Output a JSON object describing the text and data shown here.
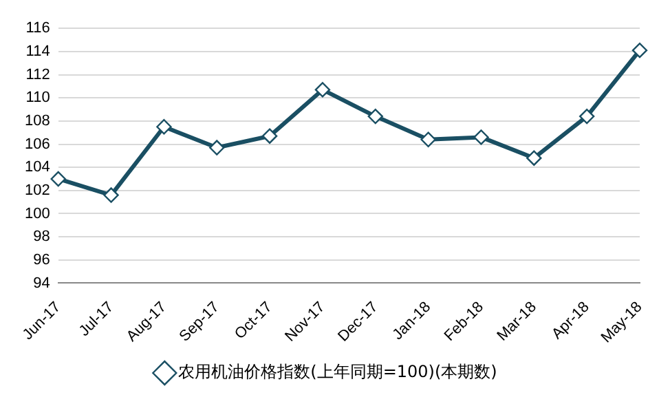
{
  "chart_data": {
    "type": "line",
    "categories": [
      "Jun-17",
      "Jul-17",
      "Aug-17",
      "Sep-17",
      "Oct-17",
      "Nov-17",
      "Dec-17",
      "Jan-18",
      "Feb-18",
      "Mar-18",
      "Apr-18",
      "May-18"
    ],
    "series": [
      {
        "name": "农用机油价格指数(上年同期=100)(本期数)",
        "color": "#1a4f63",
        "values": [
          103.0,
          101.6,
          107.5,
          105.7,
          106.7,
          110.7,
          108.4,
          106.4,
          106.6,
          104.8,
          108.4,
          114.1
        ]
      }
    ],
    "ylim": [
      94,
      116
    ],
    "yticks": [
      94,
      96,
      98,
      100,
      102,
      104,
      106,
      108,
      110,
      112,
      114,
      116
    ],
    "grid": "y",
    "legend": "bottom",
    "marker": "diamond",
    "line_style": "solid"
  }
}
